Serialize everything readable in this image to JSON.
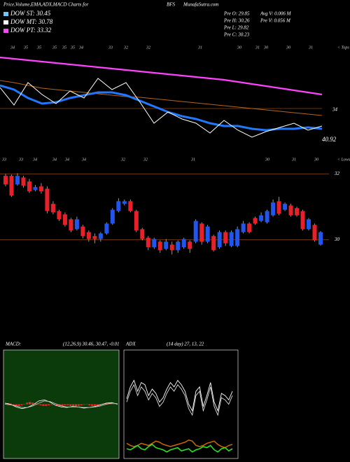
{
  "header": {
    "title": "Price,Volume,EMA,ADX,MACD Charts for",
    "symbol": "BFS",
    "site": "MunafaSutra.com"
  },
  "legend": [
    {
      "text": "DOW ST: 30.45",
      "color": "#66ccff"
    },
    {
      "text": "DOW MT: 30.78",
      "color": "#ffffff"
    },
    {
      "text": "DOW PT: 33.32",
      "color": "#ff44ff"
    }
  ],
  "info": [
    "Pre O: 29.85",
    "Pre H: 30.26",
    "Pre L: 29.82",
    "Pre C: 30.23",
    "Avg V: 0.006 M",
    "Pre V: 0.056 M"
  ],
  "chart_data": [
    {
      "type": "line",
      "tops_label": "< Tops",
      "top_labels": [
        "34",
        "35",
        "35",
        "35",
        "35",
        "35",
        "34",
        "33",
        "32",
        "32",
        "31",
        "30",
        "31",
        "30",
        "30",
        "31"
      ],
      "annotations": [
        "34",
        "40.92"
      ],
      "ylim": [
        30.5,
        36.5
      ],
      "level": 32.7,
      "series": [
        {
          "name": "DOW PT",
          "color": "#ff44ff",
          "width": 2.2,
          "values": [
            35.62,
            35.54,
            35.46,
            35.38,
            35.3,
            35.22,
            35.14,
            35.06,
            34.98,
            34.9,
            34.82,
            34.74,
            34.66,
            34.58,
            34.5,
            34.42,
            34.34,
            34.22,
            34.1,
            33.98,
            33.86,
            33.74,
            33.62,
            33.5
          ]
        },
        {
          "name": "EMA long",
          "color": "#b5651d",
          "width": 1,
          "values": [
            34.3,
            34.18,
            34.02,
            33.86,
            33.78,
            33.7,
            33.62,
            33.54,
            33.46,
            33.38,
            33.34,
            33.26,
            33.18,
            33.1,
            33.02,
            32.94,
            32.86,
            32.78,
            32.7,
            32.62,
            32.54,
            32.46,
            32.38,
            32.3
          ]
        },
        {
          "name": "EMA",
          "color": "#2277ff",
          "width": 3,
          "values": [
            34.02,
            33.78,
            33.3,
            32.98,
            33.06,
            33.3,
            33.46,
            33.62,
            33.62,
            33.46,
            33.14,
            32.82,
            32.5,
            32.26,
            32.1,
            31.86,
            31.7,
            31.7,
            31.54,
            31.46,
            31.54,
            31.54,
            31.62,
            31.54
          ]
        },
        {
          "name": "Price",
          "color": "#ffffff",
          "width": 1,
          "values": [
            33.9,
            32.9,
            34.18,
            33.5,
            32.98,
            33.7,
            33.3,
            34.42,
            33.78,
            34.18,
            33.06,
            31.86,
            32.5,
            32.1,
            31.86,
            31.3,
            32.02,
            31.46,
            31.06,
            31.38,
            31.62,
            31.86,
            31.46,
            31.7
          ]
        }
      ]
    },
    {
      "type": "candlestick",
      "lows_label": "< Lows",
      "low_labels": [
        "33",
        "33",
        "34",
        "34",
        "34",
        "34",
        "32",
        "32",
        "31",
        "30",
        "31",
        "30"
      ],
      "up_color": "#2255ee",
      "down_color": "#e8202a",
      "ylim": [
        29.2,
        32.2
      ],
      "yticks": [
        32,
        30
      ],
      "open": [
        31.94,
        31.94,
        31.68,
        31.89,
        31.77,
        31.51,
        31.62,
        31.55,
        31.09,
        30.87,
        30.77,
        30.62,
        30.32,
        30.4,
        30.23,
        30.11,
        30.02,
        30.19,
        30.49,
        30.87,
        31.09,
        31.17,
        30.87,
        30.32,
        30.06,
        29.77,
        29.94,
        29.72,
        29.85,
        29.68,
        29.77,
        29.94,
        29.94,
        30.49,
        29.94,
        30.11,
        29.77,
        30.23,
        29.81,
        29.81,
        30.23,
        30.49,
        30.66,
        30.57,
        30.53,
        30.74,
        31.17,
        30.91,
        31.04,
        30.96,
        30.87,
        30.32,
        30.45,
        29.85
      ],
      "high": [
        32.0,
        31.98,
        32.02,
        31.94,
        31.85,
        31.66,
        31.72,
        31.62,
        31.17,
        30.91,
        30.83,
        30.66,
        30.7,
        30.45,
        30.28,
        30.19,
        30.23,
        30.53,
        30.96,
        31.26,
        31.22,
        31.22,
        30.91,
        30.36,
        30.11,
        30.06,
        29.98,
        30.02,
        29.94,
        29.98,
        30.06,
        29.98,
        30.62,
        30.53,
        30.45,
        30.15,
        30.28,
        30.28,
        30.28,
        30.4,
        30.57,
        30.53,
        30.7,
        30.83,
        30.91,
        31.22,
        31.3,
        31.13,
        31.09,
        31.0,
        30.91,
        30.66,
        30.49,
        30.26
      ],
      "low": [
        31.62,
        31.3,
        31.64,
        31.58,
        31.42,
        31.47,
        31.4,
        30.8,
        30.77,
        30.57,
        30.4,
        30.23,
        30.28,
        30.04,
        29.94,
        29.89,
        29.94,
        30.15,
        30.45,
        30.83,
        31.04,
        30.83,
        30.23,
        29.98,
        29.68,
        29.72,
        29.6,
        29.68,
        29.55,
        29.6,
        29.72,
        29.6,
        29.89,
        29.85,
        29.89,
        29.64,
        29.72,
        29.81,
        29.77,
        29.77,
        30.19,
        30.19,
        30.45,
        30.53,
        30.49,
        30.7,
        30.74,
        30.87,
        30.7,
        30.7,
        30.28,
        30.28,
        29.94,
        29.82
      ],
      "close": [
        31.68,
        31.34,
        31.94,
        31.64,
        31.47,
        31.6,
        31.47,
        30.87,
        30.83,
        30.62,
        30.45,
        30.28,
        30.62,
        30.11,
        30.02,
        30.02,
        30.19,
        30.49,
        30.91,
        31.17,
        31.17,
        30.87,
        30.28,
        30.02,
        29.77,
        30.02,
        29.68,
        29.94,
        29.68,
        29.94,
        30.02,
        29.72,
        30.57,
        29.94,
        30.4,
        29.68,
        30.23,
        29.89,
        30.23,
        30.32,
        30.49,
        30.23,
        30.49,
        30.74,
        30.87,
        31.13,
        30.79,
        31.09,
        30.74,
        30.74,
        30.32,
        30.62,
        29.98,
        30.23
      ]
    },
    {
      "type": "macd",
      "title": "MACD:",
      "params": "(12,26,9) 30.46, 30.47, -0.01",
      "background": "#0b3a0b",
      "ylim": [
        -1,
        1
      ],
      "series": [
        {
          "name": "MACD",
          "color": "#ffffff",
          "values": [
            0.02,
            0.0,
            -0.05,
            -0.08,
            -0.06,
            -0.01,
            0.06,
            0.08,
            0.04,
            -0.02,
            -0.05,
            -0.06,
            -0.04,
            -0.05,
            -0.07,
            -0.06,
            -0.04,
            -0.01,
            0.02,
            0.03,
            0.0
          ]
        },
        {
          "name": "Signal",
          "color": "#cccccc",
          "values": [
            0.0,
            -0.01,
            -0.03,
            -0.06,
            -0.06,
            -0.03,
            0.02,
            0.06,
            0.05,
            0.01,
            -0.03,
            -0.05,
            -0.05,
            -0.05,
            -0.06,
            -0.06,
            -0.05,
            -0.03,
            0.0,
            0.02,
            0.01
          ]
        }
      ],
      "histogram": {
        "color": "#ff2222",
        "values": [
          0.02,
          0.01,
          -0.02,
          -0.03,
          -0.03,
          -0.02,
          0.0,
          0.03,
          0.04,
          0.03,
          0.02,
          -0.01,
          -0.02,
          -0.03,
          -0.03,
          -0.02,
          -0.01,
          0.0,
          -0.02,
          -0.03,
          -0.03,
          -0.02,
          -0.02,
          -0.03,
          -0.03,
          -0.04,
          -0.03,
          -0.02,
          -0.01,
          0.0,
          -0.02,
          -0.03,
          -0.03,
          -0.02,
          -0.01,
          0.01,
          0.02,
          0.02,
          0.01,
          0.0
        ]
      }
    },
    {
      "type": "adx",
      "title": "ADX",
      "params": "(14 day) 27, 13, 22",
      "background": "#000000",
      "ylim": [
        0,
        100
      ],
      "series": [
        {
          "name": "DI+",
          "color": "#ffffff",
          "values": [
            55,
            66,
            72,
            62,
            70,
            68,
            58,
            64,
            60,
            52,
            56,
            64,
            70,
            66,
            72,
            68,
            62,
            50,
            44,
            62,
            66,
            48,
            58,
            70,
            52,
            44,
            60,
            58,
            54,
            62
          ]
        },
        {
          "name": "DI-",
          "color": "#dddddd",
          "values": [
            52,
            62,
            68,
            58,
            66,
            62,
            54,
            60,
            56,
            48,
            52,
            60,
            66,
            62,
            68,
            64,
            58,
            46,
            40,
            58,
            62,
            44,
            54,
            66,
            48,
            40,
            56,
            54,
            50,
            58
          ]
        },
        {
          "name": "ADX",
          "color": "#cc6600",
          "values": [
            14,
            12,
            11,
            12,
            14,
            13,
            12,
            14,
            16,
            15,
            13,
            12,
            11,
            12,
            13,
            14,
            15,
            17,
            16,
            12,
            11,
            12,
            14,
            15,
            16,
            13,
            11,
            10,
            12,
            13
          ]
        },
        {
          "name": "DX",
          "color": "#22ee22",
          "values": [
            9,
            8,
            10,
            12,
            9,
            8,
            11,
            13,
            10,
            9,
            8,
            6,
            8,
            9,
            10,
            7,
            8,
            9,
            6,
            8,
            9,
            11,
            10,
            12,
            8,
            6,
            9,
            10,
            7,
            9
          ]
        }
      ]
    }
  ]
}
